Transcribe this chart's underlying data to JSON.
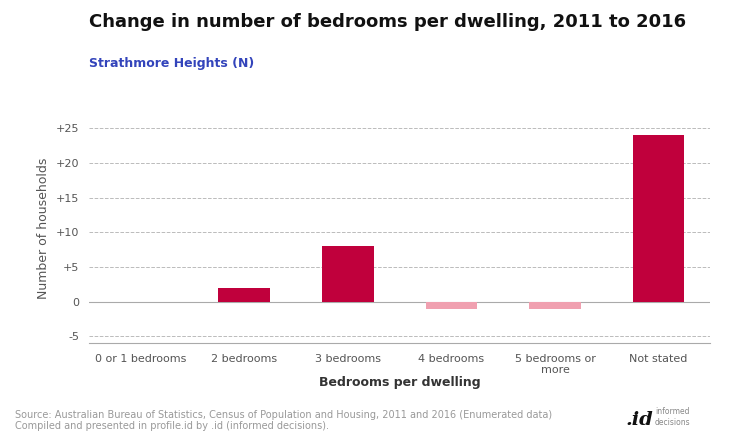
{
  "title": "Change in number of bedrooms per dwelling, 2011 to 2016",
  "subtitle": "Strathmore Heights (N)",
  "categories": [
    "0 or 1 bedrooms",
    "2 bedrooms",
    "3 bedrooms",
    "4 bedrooms",
    "5 bedrooms or\nmore",
    "Not stated"
  ],
  "values": [
    0,
    2,
    8,
    -1,
    -1,
    24
  ],
  "color_positive": "#c0003c",
  "color_negative": "#f0a0b0",
  "ylabel": "Number of households",
  "xlabel": "Bedrooms per dwelling",
  "ylim": [
    -6,
    27
  ],
  "yticks": [
    -5,
    0,
    5,
    10,
    15,
    20,
    25
  ],
  "ytick_labels": [
    "-5",
    "0",
    "+5",
    "+10",
    "+15",
    "+20",
    "+25"
  ],
  "grid_color": "#bbbbbb",
  "background_color": "#ffffff",
  "title_fontsize": 13,
  "subtitle_fontsize": 9,
  "ylabel_fontsize": 9,
  "xlabel_fontsize": 9,
  "tick_fontsize": 8,
  "source_text": "Source: Australian Bureau of Statistics, Census of Population and Housing, 2011 and 2016 (Enumerated data)\nCompiled and presented in profile.id by .id (informed decisions).",
  "source_fontsize": 7,
  "source_color": "#999999",
  "subtitle_color": "#3344bb",
  "title_color": "#111111",
  "ylabel_color": "#555555",
  "tick_color": "#555555"
}
